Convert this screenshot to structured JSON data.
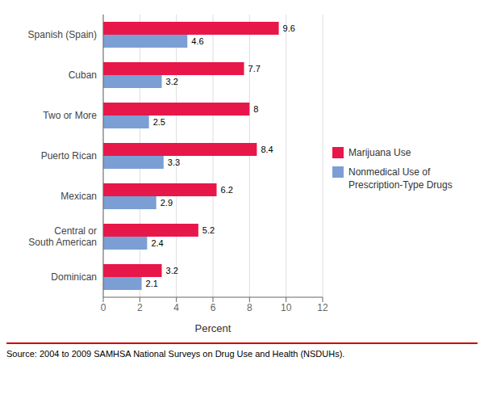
{
  "chart_data": {
    "type": "bar",
    "orientation": "horizontal",
    "categories": [
      "Dominican",
      "Central or\nSouth American",
      "Mexican",
      "Puerto Rican",
      "Two or More",
      "Cuban",
      "Spanish (Spain)"
    ],
    "series": [
      {
        "name": "Marijuana Use",
        "color": "#e8174a",
        "values": [
          3.2,
          5.2,
          6.2,
          8.4,
          8.0,
          7.7,
          9.6
        ]
      },
      {
        "name": "Nonmedical Use of\nPrescription-Type Drugs",
        "color": "#7b9fd4",
        "values": [
          2.1,
          2.4,
          2.9,
          3.3,
          2.5,
          3.2,
          4.6
        ]
      }
    ],
    "xlabel": "Percent",
    "xlim": [
      0,
      12
    ],
    "xticks": [
      0,
      2,
      4,
      6,
      8,
      10,
      12
    ],
    "grid": true,
    "data_labels": true,
    "legend": "right",
    "annotations": [
      "Source: 2004 to 2009 SAMHSA National Surveys on Drug Use and Health (NSDUHs)."
    ]
  }
}
